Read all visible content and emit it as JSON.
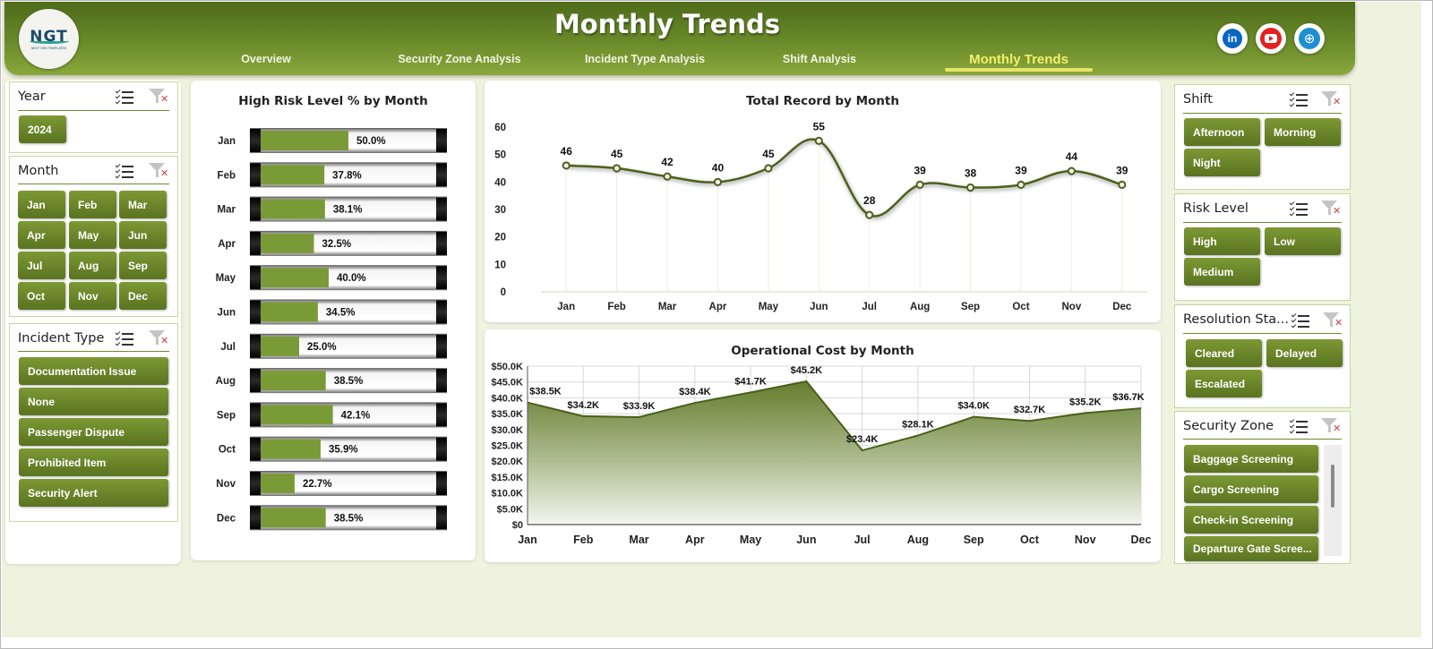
{
  "header": {
    "title": "Monthly Trends",
    "logo_text": "NGT",
    "logo_sub": "NEXT GEN TEMPLATES",
    "tabs": [
      {
        "label": "Overview",
        "active": false
      },
      {
        "label": "Security Zone Analysis",
        "active": false
      },
      {
        "label": "Incident Type Analysis",
        "active": false
      },
      {
        "label": "Shift Analysis",
        "active": false
      },
      {
        "label": "Monthly Trends",
        "active": true
      }
    ],
    "social": [
      {
        "name": "linkedin-icon",
        "glyph": "in"
      },
      {
        "name": "youtube-icon",
        "glyph": ""
      },
      {
        "name": "website-icon",
        "glyph": "⊕"
      }
    ]
  },
  "colors": {
    "header_dark": "#4e6b1a",
    "accent_olive": "#6b8a2c",
    "bar_fill": "#7a9a38",
    "line": "#4f5f1f",
    "active_tab": "#f3ee6a",
    "background": "#eef2de"
  },
  "slicers": {
    "year": {
      "title": "Year",
      "items": [
        "2024"
      ]
    },
    "month": {
      "title": "Month",
      "items": [
        "Jan",
        "Feb",
        "Mar",
        "Apr",
        "May",
        "Jun",
        "Jul",
        "Aug",
        "Sep",
        "Oct",
        "Nov",
        "Dec"
      ]
    },
    "incident_type": {
      "title": "Incident Type",
      "items": [
        "Documentation Issue",
        "None",
        "Passenger Dispute",
        "Prohibited Item",
        "Security Alert"
      ]
    },
    "shift": {
      "title": "Shift",
      "items": [
        "Afternoon",
        "Morning",
        "Night"
      ]
    },
    "risk_level": {
      "title": "Risk Level",
      "items": [
        "High",
        "Low",
        "Medium"
      ]
    },
    "resolution_status": {
      "title": "Resolution Sta...",
      "items": [
        "Cleared",
        "Delayed",
        "Escalated"
      ]
    },
    "security_zone": {
      "title": "Security Zone",
      "items": [
        "Baggage Screening",
        "Cargo Screening",
        "Check-in Screening",
        "Departure Gate Scree..."
      ]
    }
  },
  "chart_data": [
    {
      "type": "bar",
      "orientation": "horizontal",
      "title": "High Risk Level % by Month",
      "categories": [
        "Jan",
        "Feb",
        "Mar",
        "Apr",
        "May",
        "Jun",
        "Jul",
        "Aug",
        "Sep",
        "Oct",
        "Nov",
        "Dec"
      ],
      "values": [
        50.0,
        37.8,
        38.1,
        32.5,
        40.0,
        34.5,
        25.0,
        38.5,
        42.1,
        35.9,
        22.7,
        38.5
      ],
      "labels": [
        "50.0%",
        "37.8%",
        "38.1%",
        "32.5%",
        "40.0%",
        "34.5%",
        "25.0%",
        "38.5%",
        "42.1%",
        "35.9%",
        "22.7%",
        "38.5%"
      ],
      "xlim": [
        0,
        100
      ]
    },
    {
      "type": "line",
      "title": "Total Record by Month",
      "categories": [
        "Jan",
        "Feb",
        "Mar",
        "Apr",
        "May",
        "Jun",
        "Jul",
        "Aug",
        "Sep",
        "Oct",
        "Nov",
        "Dec"
      ],
      "values": [
        46,
        45,
        42,
        40,
        45,
        55,
        28,
        39,
        38,
        39,
        44,
        39
      ],
      "ylim": [
        0,
        60
      ],
      "yticks": [
        "0",
        "10",
        "20",
        "30",
        "40",
        "50",
        "60"
      ],
      "smooth": true
    },
    {
      "type": "area",
      "title": "Operational Cost by Month",
      "categories": [
        "Jan",
        "Feb",
        "Mar",
        "Apr",
        "May",
        "Jun",
        "Jul",
        "Aug",
        "Sep",
        "Oct",
        "Nov",
        "Dec"
      ],
      "values": [
        38.5,
        34.2,
        33.9,
        38.4,
        41.7,
        45.2,
        23.4,
        28.1,
        34.0,
        32.7,
        35.2,
        36.7
      ],
      "labels": [
        "$38.5K",
        "$34.2K",
        "$33.9K",
        "$38.4K",
        "$41.7K",
        "$45.2K",
        "$23.4K",
        "$28.1K",
        "$34.0K",
        "$32.7K",
        "$35.2K",
        "$36.7K"
      ],
      "ylim": [
        0,
        50
      ],
      "yticks": [
        "$0",
        "$5.0K",
        "$10.0K",
        "$15.0K",
        "$20.0K",
        "$25.0K",
        "$30.0K",
        "$35.0K",
        "$40.0K",
        "$45.0K",
        "$50.0K"
      ],
      "grid": true
    }
  ]
}
